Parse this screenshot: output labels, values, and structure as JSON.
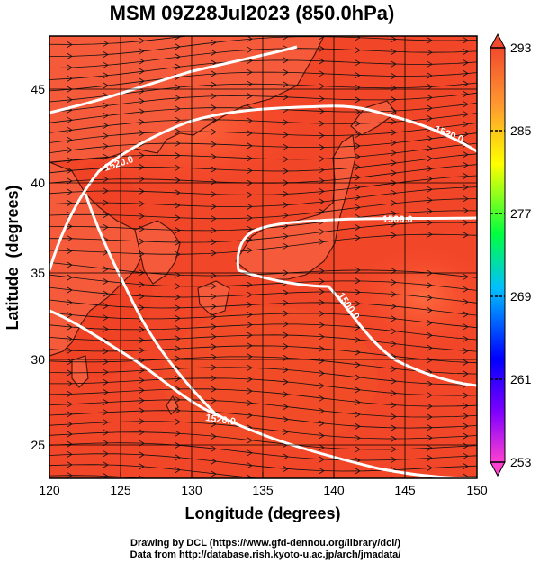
{
  "title": "MSM 09Z28Jul2023 (850.0hPa)",
  "axes": {
    "xlabel": "Longitude (degrees)",
    "ylabel": "Latitude  (degrees)",
    "xticks": [
      "120",
      "125",
      "130",
      "135",
      "140",
      "145",
      "150"
    ],
    "yticks": [
      "25",
      "30",
      "35",
      "40",
      "45"
    ],
    "xrange": [
      120,
      150
    ],
    "yrange": [
      22.4,
      47.6
    ]
  },
  "colorbar": {
    "labels": [
      "293",
      "285",
      "277",
      "269",
      "261",
      "253"
    ],
    "range": [
      253,
      293
    ],
    "colors": [
      "#ff0080",
      "#0000ff",
      "#00c0ff",
      "#00ff00",
      "#ffff00",
      "#ff6040"
    ]
  },
  "contours": [
    {
      "label": "1520.0"
    },
    {
      "label": "1500.0"
    },
    {
      "label": "1500.0"
    },
    {
      "label": "1520.0"
    },
    {
      "label": "1520.0"
    }
  ],
  "field": {
    "background_color": "#f44a2a",
    "variable": "temperature shading with wind streamlines"
  },
  "credits": {
    "line1": "Drawing by DCL (https://www.gfd-dennou.org/library/dcl/)",
    "line2": "Data from http://database.rish.kyoto-u.ac.jp/arch/jmadata/"
  }
}
